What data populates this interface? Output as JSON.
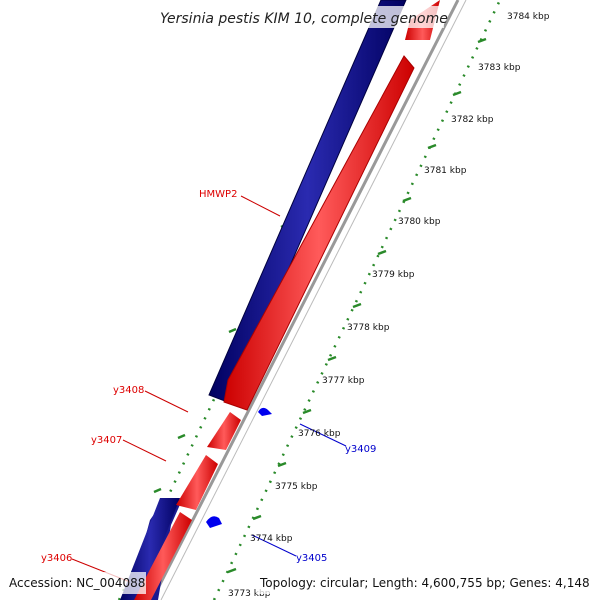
{
  "map": {
    "title": "Yersinia pestis KIM 10, complete genome",
    "accession": "Accession: NC_004088",
    "summary": "Topology: circular; Length: 4,600,755 bp; Genes: 4,148"
  },
  "colors": {
    "forward_feature": "#0a0a80",
    "reverse_feature": "#ff1a1a",
    "tick": "#2a8a2a",
    "backbone": "#888888",
    "label_red": "#dd0000",
    "label_blue": "#0000cc"
  },
  "scale_ticks": [
    "3773 kbp",
    "3774 kbp",
    "3775 kbp",
    "3776 kbp",
    "3777 kbp",
    "3778 kbp",
    "3779 kbp",
    "3780 kbp",
    "3781 kbp",
    "3782 kbp",
    "3783 kbp",
    "3784 kbp"
  ],
  "gene_labels": [
    {
      "text": "HMWP2",
      "strand": "reverse"
    },
    {
      "text": "y3408",
      "strand": "reverse"
    },
    {
      "text": "y3407",
      "strand": "reverse"
    },
    {
      "text": "y3406",
      "strand": "reverse"
    },
    {
      "text": "y3409",
      "strand": "forward"
    },
    {
      "text": "y3405",
      "strand": "forward"
    }
  ]
}
